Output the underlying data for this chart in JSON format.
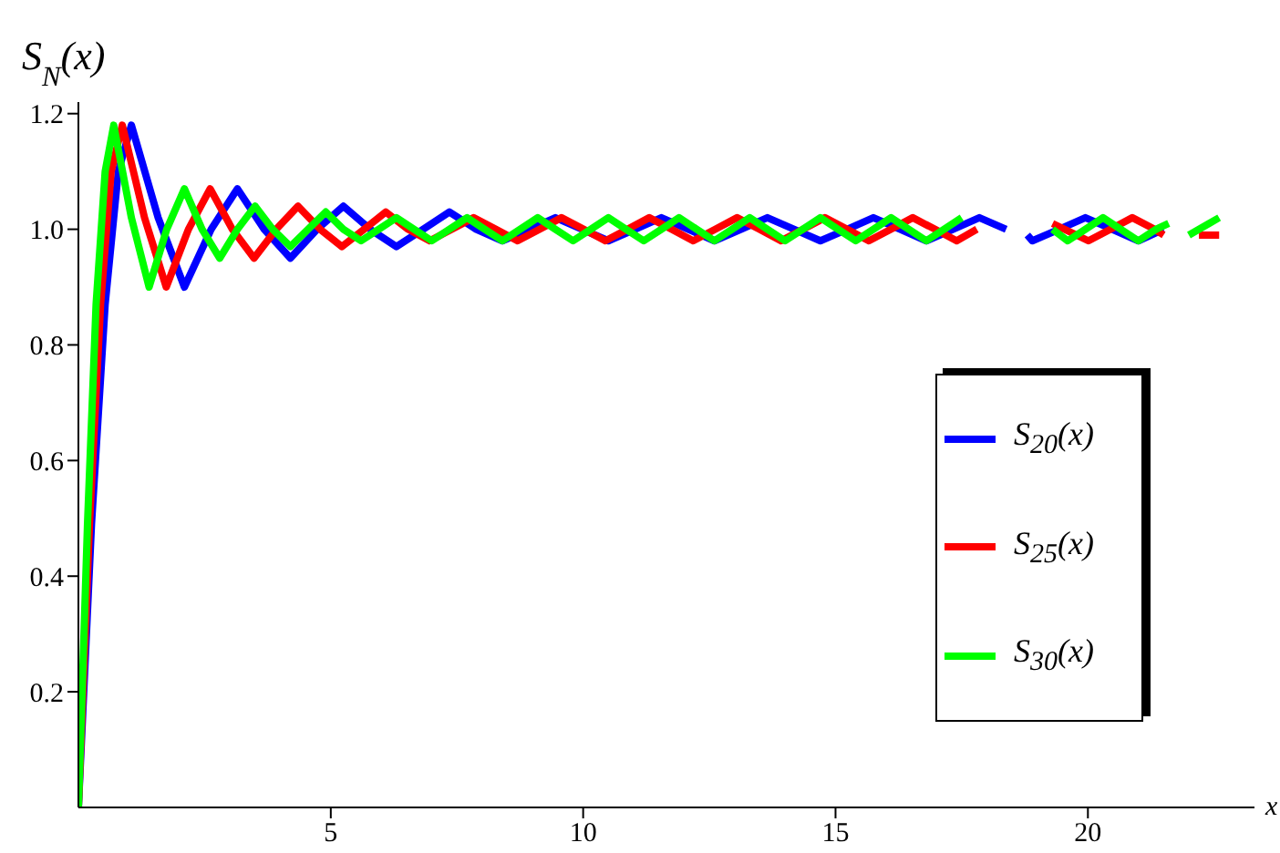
{
  "chart_data": {
    "type": "line",
    "ylabel": "S$_{N}$(x)",
    "xlabel": "x",
    "xlim": [
      0,
      23.3
    ],
    "ylim": [
      0,
      1.22
    ],
    "xticks": [
      5,
      10,
      15,
      20
    ],
    "yticks": [
      0.2,
      0.4,
      0.6,
      0.8,
      {
        "value": 1,
        "label": "1.0"
      },
      1.2
    ],
    "grid": false,
    "legend": "right",
    "marker": "none",
    "line_style": "solid",
    "series": [
      {
        "name": "S$_{20}$(x)",
        "color": "#0000ff",
        "x": [
          0,
          0.26,
          0.53,
          0.79,
          1.05,
          1.58,
          2.1,
          2.63,
          3.15,
          3.68,
          4.2,
          4.73,
          5.25,
          5.78,
          6.3,
          6.83,
          7.35,
          7.88,
          8.4,
          8.93,
          9.45,
          9.98,
          10.5,
          11.03,
          11.55,
          12.08,
          12.6,
          13.13,
          13.65,
          14.18,
          14.7,
          15.23,
          15.75,
          16.28,
          16.8,
          17.33,
          17.85,
          18.38,
          18.6,
          18.8,
          18.9,
          19.43,
          19.95,
          20.48,
          21.0,
          21.5
        ],
        "values": [
          0,
          0.49,
          0.87,
          1.1,
          1.18,
          1.02,
          0.9,
          1.0,
          1.07,
          1.0,
          0.95,
          1.0,
          1.04,
          1.0,
          0.97,
          1.0,
          1.03,
          1.0,
          0.98,
          1.0,
          1.02,
          1.0,
          0.98,
          1.0,
          1.02,
          1.0,
          0.98,
          1.0,
          1.02,
          1.0,
          0.98,
          1.0,
          1.02,
          1.0,
          0.98,
          1.0,
          1.02,
          1.0,
          null,
          0.99,
          0.98,
          1.0,
          1.02,
          1.0,
          0.98,
          1.0
        ]
      },
      {
        "name": "S$_{25}$(x)",
        "color": "#ff0000",
        "x": [
          0,
          0.22,
          0.44,
          0.65,
          0.87,
          1.31,
          1.74,
          2.18,
          2.61,
          3.05,
          3.48,
          3.92,
          4.35,
          4.79,
          5.22,
          5.66,
          6.09,
          6.53,
          6.96,
          7.4,
          7.83,
          8.27,
          8.7,
          9.14,
          9.57,
          10.01,
          10.44,
          10.88,
          11.31,
          11.75,
          12.18,
          12.62,
          13.05,
          13.49,
          13.92,
          14.36,
          14.79,
          15.23,
          15.66,
          16.1,
          16.53,
          16.97,
          17.4,
          17.8,
          18.5,
          19.3,
          20.01,
          20.45,
          20.88,
          21.32,
          21.5,
          21.8,
          22.2,
          22.6
        ],
        "values": [
          0,
          0.49,
          0.87,
          1.1,
          1.18,
          1.02,
          0.9,
          1.0,
          1.07,
          1.0,
          0.95,
          1.0,
          1.04,
          1.0,
          0.97,
          1.0,
          1.03,
          1.0,
          0.98,
          1.0,
          1.02,
          1.0,
          0.98,
          1.0,
          1.02,
          1.0,
          0.98,
          1.0,
          1.02,
          1.0,
          0.98,
          1.0,
          1.02,
          1.0,
          0.98,
          1.0,
          1.02,
          1.0,
          0.98,
          1.0,
          1.02,
          1.0,
          0.98,
          1.0,
          null,
          1.01,
          0.98,
          1.0,
          1.02,
          1.0,
          0.99,
          null,
          0.99,
          0.99
        ]
      },
      {
        "name": "S$_{30}$(x)",
        "color": "#00ff00",
        "x": [
          0,
          0.18,
          0.35,
          0.53,
          0.7,
          1.05,
          1.4,
          1.75,
          2.1,
          2.45,
          2.8,
          3.15,
          3.5,
          3.85,
          4.2,
          4.55,
          4.9,
          5.25,
          5.6,
          5.95,
          6.3,
          6.65,
          7.0,
          7.35,
          7.7,
          8.05,
          8.4,
          8.75,
          9.1,
          9.45,
          9.8,
          10.15,
          10.5,
          10.85,
          11.2,
          11.55,
          11.9,
          12.25,
          12.6,
          12.95,
          13.3,
          13.65,
          14.0,
          14.35,
          14.7,
          15.05,
          15.4,
          15.75,
          16.1,
          16.45,
          16.8,
          17.15,
          17.5,
          18.4,
          19.3,
          19.6,
          19.95,
          20.3,
          20.65,
          21.0,
          21.35,
          21.6,
          21.8,
          22.0,
          22.4,
          22.6
        ],
        "values": [
          0,
          0.49,
          0.87,
          1.1,
          1.18,
          1.02,
          0.9,
          1.0,
          1.07,
          1.0,
          0.95,
          1.0,
          1.04,
          1.0,
          0.97,
          1.0,
          1.03,
          1.0,
          0.98,
          1.0,
          1.02,
          1.0,
          0.98,
          1.0,
          1.02,
          1.0,
          0.98,
          1.0,
          1.02,
          1.0,
          0.98,
          1.0,
          1.02,
          1.0,
          0.98,
          1.0,
          1.02,
          1.0,
          0.98,
          1.0,
          1.02,
          1.0,
          0.98,
          1.0,
          1.02,
          1.0,
          0.98,
          1.0,
          1.02,
          1.0,
          0.98,
          1.0,
          1.02,
          null,
          1.0,
          0.98,
          1.0,
          1.02,
          1.0,
          0.98,
          1.0,
          1.01,
          null,
          0.99,
          1.01,
          1.02
        ]
      }
    ]
  }
}
